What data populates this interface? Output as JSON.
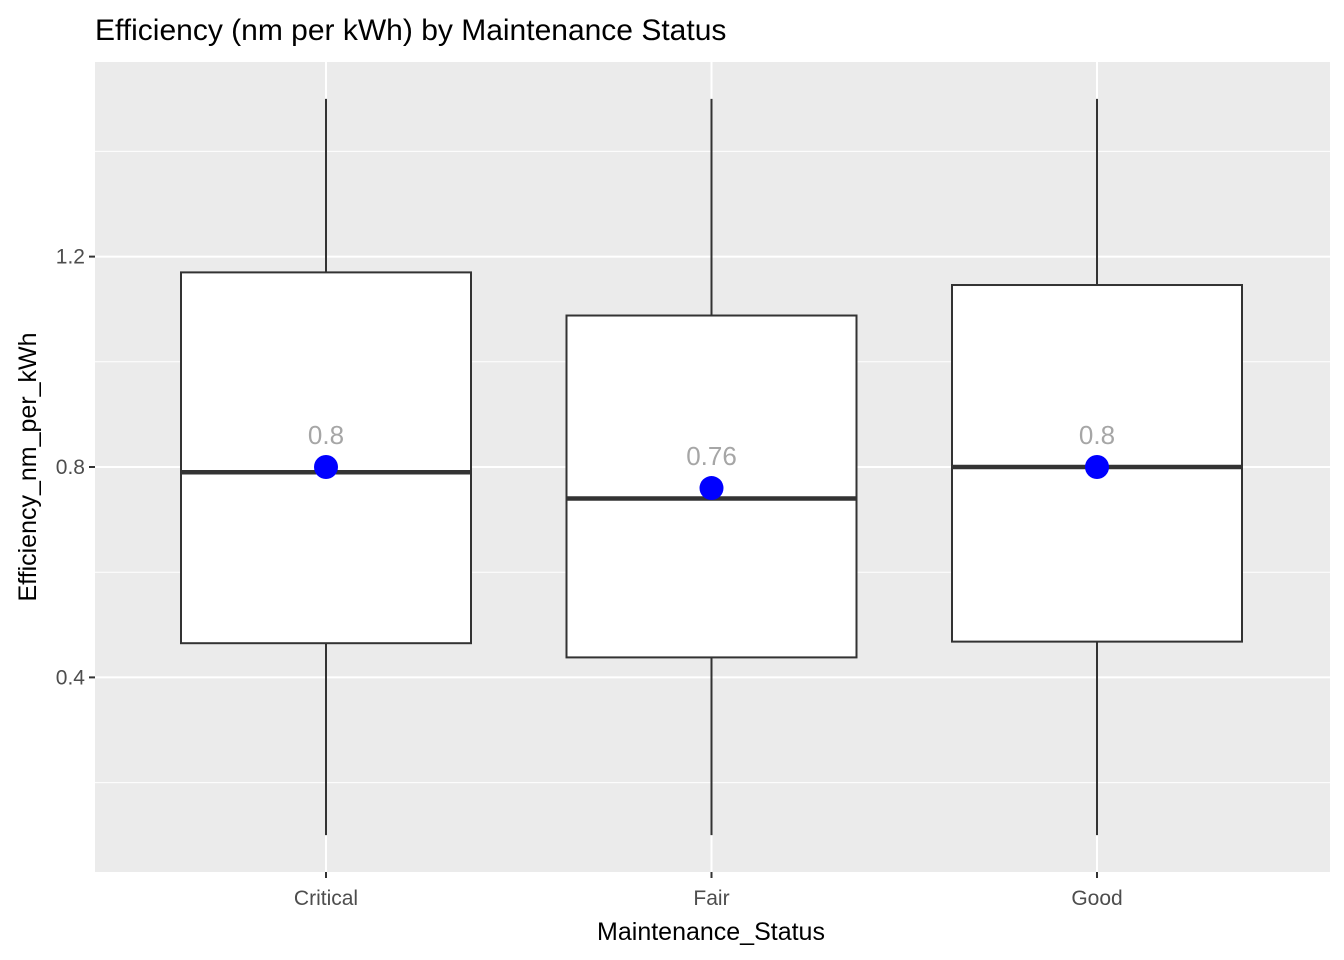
{
  "chart_data": {
    "type": "boxplot",
    "title": "Efficiency (nm per kWh) by Maintenance Status",
    "xlabel": "Maintenance_Status",
    "ylabel": "Efficiency_nm_per_kWh",
    "ylim": [
      0.03,
      1.57
    ],
    "y_ticks": [
      0.4,
      0.8,
      1.2
    ],
    "y_tick_labels": [
      "0.4",
      "0.8",
      "1.2"
    ],
    "y_minor_ticks": [
      0.2,
      0.6,
      1.0,
      1.4
    ],
    "grid": true,
    "legend": "none",
    "colors": {
      "panel_background": "#EBEBEB",
      "grid": "#FFFFFF",
      "box_fill": "#FFFFFF",
      "box_outline": "#333333",
      "mean_point": "#0000FF",
      "mean_label": "#A6A6A6"
    },
    "categories": [
      "Critical",
      "Fair",
      "Good"
    ],
    "boxes": [
      {
        "category": "Critical",
        "min": 0.1,
        "q1": 0.465,
        "median": 0.79,
        "q3": 1.17,
        "max": 1.5,
        "mean": 0.8
      },
      {
        "category": "Fair",
        "min": 0.1,
        "q1": 0.438,
        "median": 0.74,
        "q3": 1.088,
        "max": 1.5,
        "mean": 0.76
      },
      {
        "category": "Good",
        "min": 0.1,
        "q1": 0.468,
        "median": 0.8,
        "q3": 1.146,
        "max": 1.5,
        "mean": 0.8
      }
    ],
    "mean_labels": [
      "0.8",
      "0.76",
      "0.8"
    ]
  }
}
